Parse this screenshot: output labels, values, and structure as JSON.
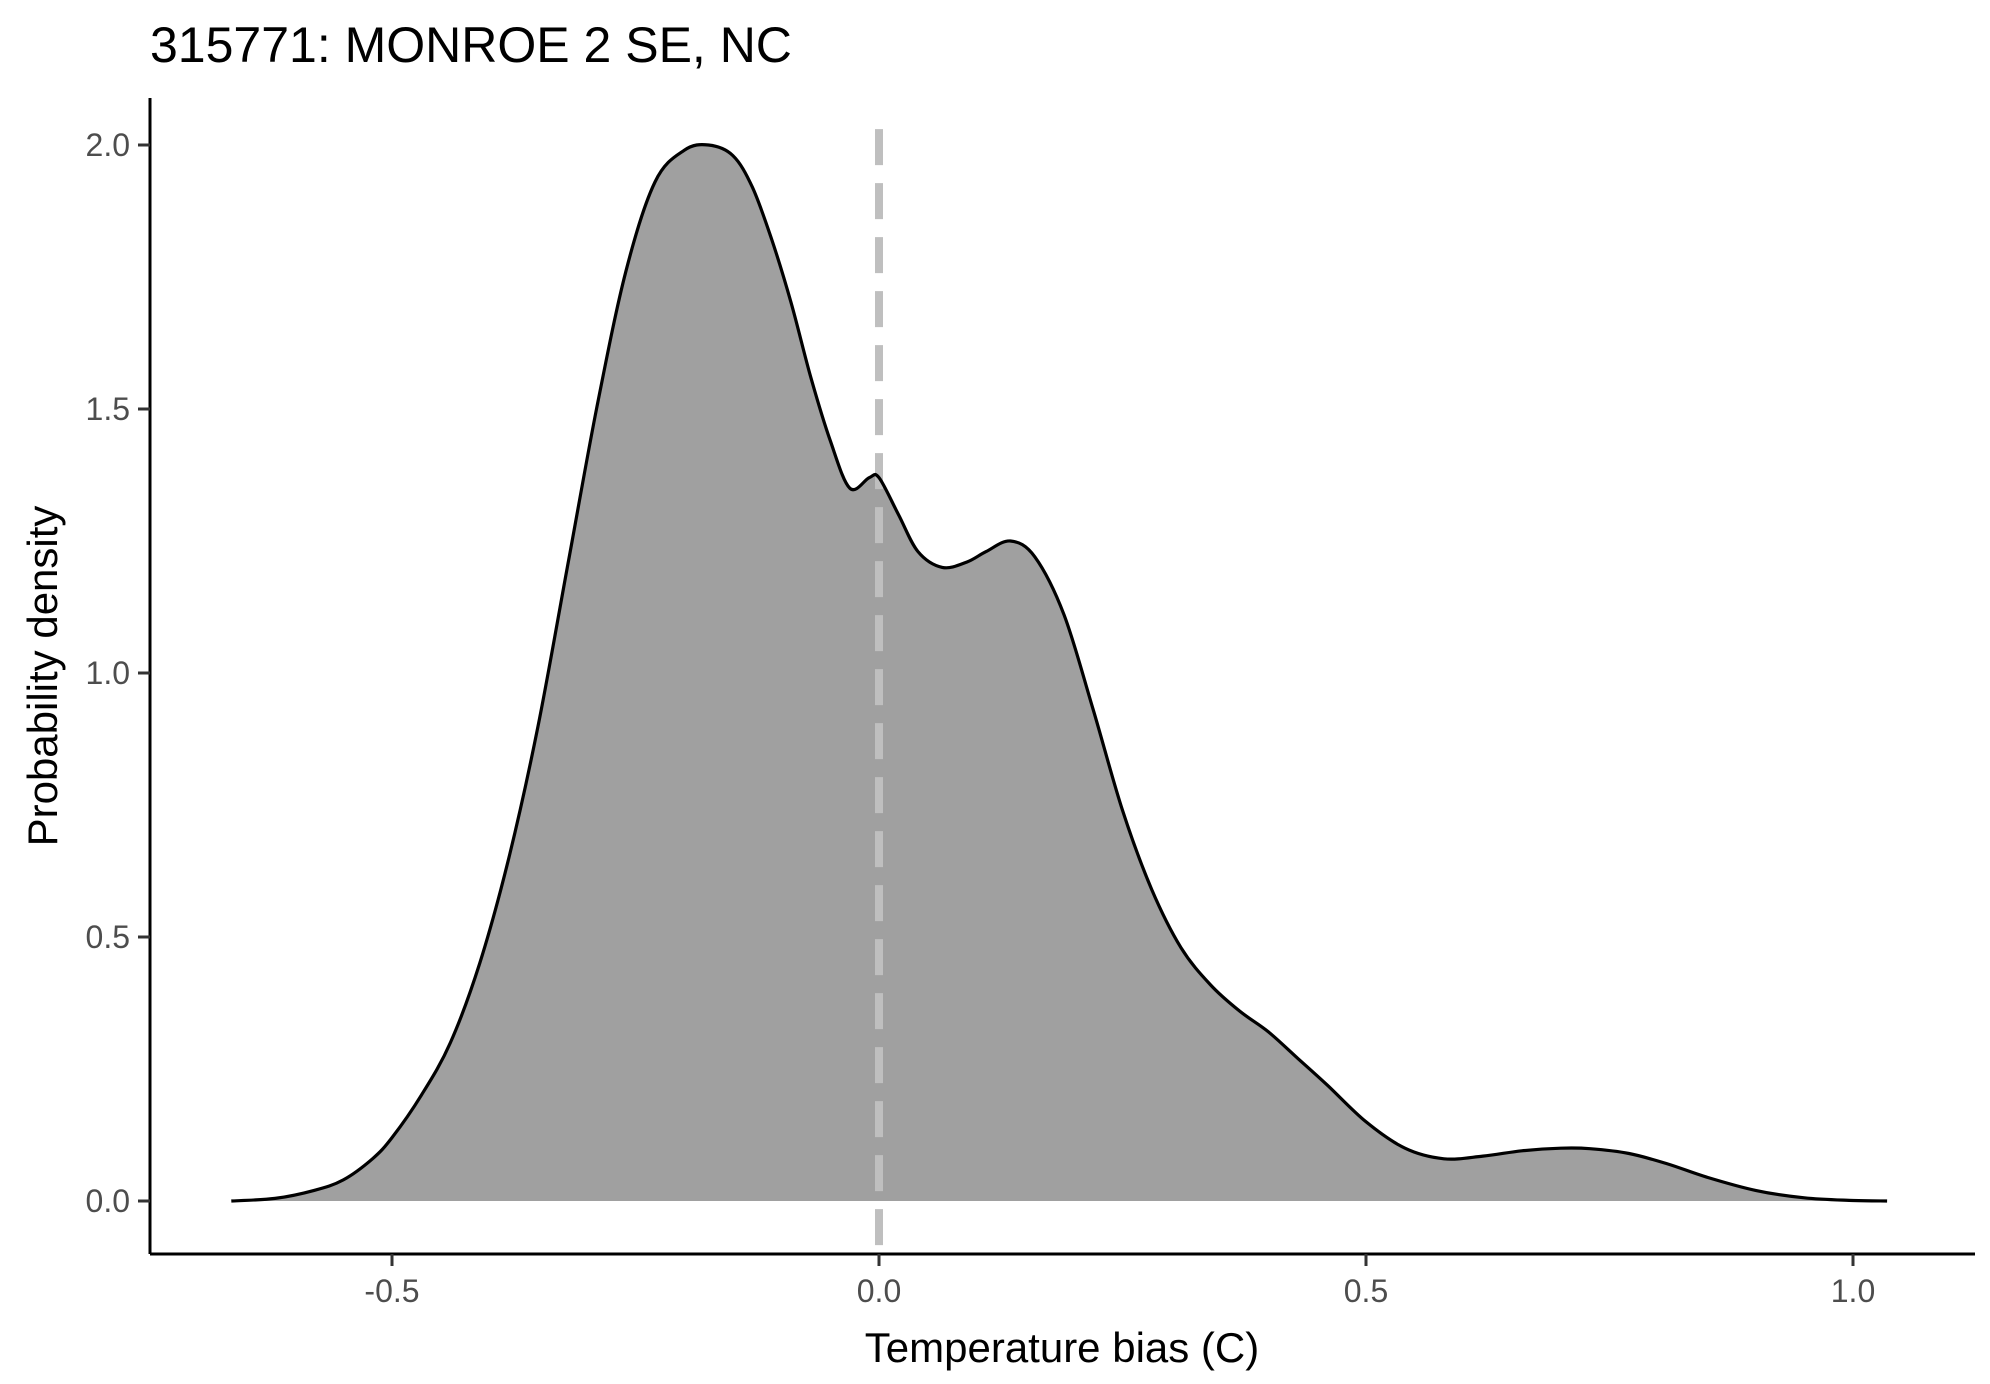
{
  "chart_data": {
    "type": "area",
    "title": "315771: MONROE 2 SE, NC",
    "xlabel": "Temperature bias (C)",
    "ylabel": "Probability density",
    "xlim": [
      -0.75,
      1.12
    ],
    "ylim": [
      -0.1,
      2.1
    ],
    "x_ticks": [
      -0.5,
      0.0,
      0.5,
      1.0
    ],
    "x_tick_labels": [
      "-0.5",
      "0.0",
      "0.5",
      "1.0"
    ],
    "y_ticks": [
      0.0,
      0.5,
      1.0,
      1.5,
      2.0
    ],
    "y_tick_labels": [
      "0.0",
      "0.5",
      "1.0",
      "1.5",
      "2.0"
    ],
    "grid": false,
    "reference_line": {
      "x": 0.0,
      "style": "dashed",
      "color": "#bfbfbf"
    },
    "fill_color": "#a0a0a0",
    "line_color": "#000000",
    "series": [
      {
        "x": [
          -0.665,
          -0.62,
          -0.58,
          -0.55,
          -0.52,
          -0.5,
          -0.47,
          -0.44,
          -0.41,
          -0.38,
          -0.35,
          -0.32,
          -0.29,
          -0.26,
          -0.23,
          -0.2,
          -0.175,
          -0.15,
          -0.13,
          -0.11,
          -0.09,
          -0.07,
          -0.05,
          -0.03,
          -0.01,
          0.0,
          0.02,
          0.04,
          0.065,
          0.09,
          0.11,
          0.135,
          0.16,
          0.19,
          0.22,
          0.25,
          0.28,
          0.31,
          0.34,
          0.37,
          0.4,
          0.43,
          0.46,
          0.5,
          0.54,
          0.58,
          0.62,
          0.66,
          0.7,
          0.73,
          0.77,
          0.81,
          0.85,
          0.9,
          0.95,
          1.0,
          1.035
        ],
        "y": [
          0.0,
          0.005,
          0.02,
          0.04,
          0.08,
          0.12,
          0.2,
          0.3,
          0.45,
          0.65,
          0.9,
          1.2,
          1.5,
          1.76,
          1.93,
          1.99,
          2.0,
          1.98,
          1.92,
          1.82,
          1.7,
          1.56,
          1.44,
          1.35,
          1.37,
          1.37,
          1.3,
          1.23,
          1.2,
          1.21,
          1.23,
          1.25,
          1.22,
          1.11,
          0.93,
          0.74,
          0.59,
          0.48,
          0.41,
          0.36,
          0.32,
          0.27,
          0.22,
          0.15,
          0.1,
          0.08,
          0.085,
          0.095,
          0.1,
          0.099,
          0.09,
          0.07,
          0.045,
          0.02,
          0.006,
          0.001,
          0.0
        ]
      }
    ]
  }
}
